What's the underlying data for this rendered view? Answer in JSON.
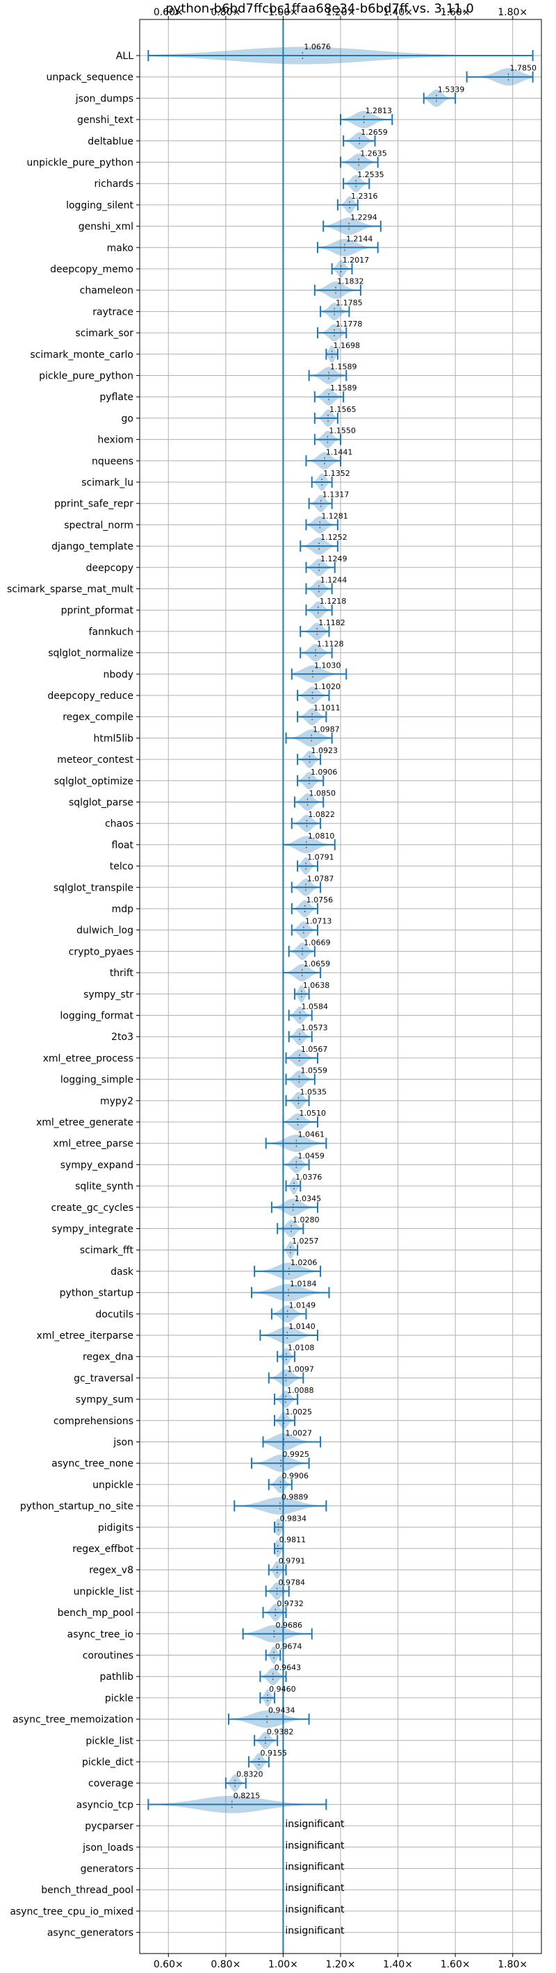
{
  "chart_data": {
    "type": "violin",
    "title": "python-b6bd7ffcbc1ffaa68e34-b6bd7ff vs. 3.11.0",
    "xlim": [
      0.5,
      1.9
    ],
    "xticks": [
      {
        "v": 0.6,
        "label": "0.60×"
      },
      {
        "v": 0.8,
        "label": "0.80×"
      },
      {
        "v": 1.0,
        "label": "1.00×"
      },
      {
        "v": 1.2,
        "label": "1.20×"
      },
      {
        "v": 1.4,
        "label": "1.40×"
      },
      {
        "v": 1.6,
        "label": "1.60×"
      },
      {
        "v": 1.8,
        "label": "1.80×"
      }
    ],
    "reference_line": 1.0,
    "grid": true,
    "insignificant_text": "insignificant",
    "benchmarks": [
      {
        "name": "ALL",
        "label": "1.0676",
        "value": 1.0676,
        "min": 0.53,
        "max": 1.87
      },
      {
        "name": "unpack_sequence",
        "label": "1.7850",
        "value": 1.785,
        "min": 1.64,
        "max": 1.87
      },
      {
        "name": "json_dumps",
        "label": "1.5339",
        "value": 1.5339,
        "min": 1.49,
        "max": 1.6
      },
      {
        "name": "genshi_text",
        "label": "1.2813",
        "value": 1.2813,
        "min": 1.2,
        "max": 1.38
      },
      {
        "name": "deltablue",
        "label": "1.2659",
        "value": 1.2659,
        "min": 1.21,
        "max": 1.32
      },
      {
        "name": "unpickle_pure_python",
        "label": "1.2635",
        "value": 1.2635,
        "min": 1.2,
        "max": 1.33
      },
      {
        "name": "richards",
        "label": "1.2535",
        "value": 1.2535,
        "min": 1.21,
        "max": 1.3
      },
      {
        "name": "logging_silent",
        "label": "1.2316",
        "value": 1.2316,
        "min": 1.19,
        "max": 1.26
      },
      {
        "name": "genshi_xml",
        "label": "1.2294",
        "value": 1.2294,
        "min": 1.14,
        "max": 1.34
      },
      {
        "name": "mako",
        "label": "1.2144",
        "value": 1.2144,
        "min": 1.12,
        "max": 1.33
      },
      {
        "name": "deepcopy_memo",
        "label": "1.2017",
        "value": 1.2017,
        "min": 1.17,
        "max": 1.24
      },
      {
        "name": "chameleon",
        "label": "1.1832",
        "value": 1.1832,
        "min": 1.11,
        "max": 1.27
      },
      {
        "name": "raytrace",
        "label": "1.1785",
        "value": 1.1785,
        "min": 1.13,
        "max": 1.23
      },
      {
        "name": "scimark_sor",
        "label": "1.1778",
        "value": 1.1778,
        "min": 1.12,
        "max": 1.22
      },
      {
        "name": "scimark_monte_carlo",
        "label": "1.1698",
        "value": 1.1698,
        "min": 1.15,
        "max": 1.19
      },
      {
        "name": "pickle_pure_python",
        "label": "1.1589",
        "value": 1.1589,
        "min": 1.09,
        "max": 1.22
      },
      {
        "name": "pyflate",
        "label": "1.1589",
        "value": 1.1589,
        "min": 1.11,
        "max": 1.21
      },
      {
        "name": "go",
        "label": "1.1565",
        "value": 1.1565,
        "min": 1.11,
        "max": 1.19
      },
      {
        "name": "hexiom",
        "label": "1.1550",
        "value": 1.155,
        "min": 1.11,
        "max": 1.2
      },
      {
        "name": "nqueens",
        "label": "1.1441",
        "value": 1.1441,
        "min": 1.08,
        "max": 1.2
      },
      {
        "name": "scimark_lu",
        "label": "1.1352",
        "value": 1.1352,
        "min": 1.1,
        "max": 1.17
      },
      {
        "name": "pprint_safe_repr",
        "label": "1.1317",
        "value": 1.1317,
        "min": 1.09,
        "max": 1.17
      },
      {
        "name": "spectral_norm",
        "label": "1.1281",
        "value": 1.1281,
        "min": 1.08,
        "max": 1.19
      },
      {
        "name": "django_template",
        "label": "1.1252",
        "value": 1.1252,
        "min": 1.06,
        "max": 1.19
      },
      {
        "name": "deepcopy",
        "label": "1.1249",
        "value": 1.1249,
        "min": 1.08,
        "max": 1.18
      },
      {
        "name": "scimark_sparse_mat_mult",
        "label": "1.1244",
        "value": 1.1244,
        "min": 1.08,
        "max": 1.17
      },
      {
        "name": "pprint_pformat",
        "label": "1.1218",
        "value": 1.1218,
        "min": 1.08,
        "max": 1.17
      },
      {
        "name": "fannkuch",
        "label": "1.1182",
        "value": 1.1182,
        "min": 1.06,
        "max": 1.16
      },
      {
        "name": "sqlglot_normalize",
        "label": "1.1128",
        "value": 1.1128,
        "min": 1.06,
        "max": 1.17
      },
      {
        "name": "nbody",
        "label": "1.1030",
        "value": 1.103,
        "min": 1.03,
        "max": 1.22
      },
      {
        "name": "deepcopy_reduce",
        "label": "1.1020",
        "value": 1.102,
        "min": 1.05,
        "max": 1.16
      },
      {
        "name": "regex_compile",
        "label": "1.1011",
        "value": 1.1011,
        "min": 1.05,
        "max": 1.15
      },
      {
        "name": "html5lib",
        "label": "1.0987",
        "value": 1.0987,
        "min": 1.01,
        "max": 1.17
      },
      {
        "name": "meteor_contest",
        "label": "1.0923",
        "value": 1.0923,
        "min": 1.05,
        "max": 1.13
      },
      {
        "name": "sqlglot_optimize",
        "label": "1.0906",
        "value": 1.0906,
        "min": 1.05,
        "max": 1.14
      },
      {
        "name": "sqlglot_parse",
        "label": "1.0850",
        "value": 1.085,
        "min": 1.04,
        "max": 1.14
      },
      {
        "name": "chaos",
        "label": "1.0822",
        "value": 1.0822,
        "min": 1.03,
        "max": 1.13
      },
      {
        "name": "float",
        "label": "1.0810",
        "value": 1.081,
        "min": 1.0,
        "max": 1.18
      },
      {
        "name": "telco",
        "label": "1.0791",
        "value": 1.0791,
        "min": 1.05,
        "max": 1.12
      },
      {
        "name": "sqlglot_transpile",
        "label": "1.0787",
        "value": 1.0787,
        "min": 1.03,
        "max": 1.13
      },
      {
        "name": "mdp",
        "label": "1.0756",
        "value": 1.0756,
        "min": 1.03,
        "max": 1.12
      },
      {
        "name": "dulwich_log",
        "label": "1.0713",
        "value": 1.0713,
        "min": 1.03,
        "max": 1.12
      },
      {
        "name": "crypto_pyaes",
        "label": "1.0669",
        "value": 1.0669,
        "min": 1.02,
        "max": 1.11
      },
      {
        "name": "thrift",
        "label": "1.0659",
        "value": 1.0659,
        "min": 1.0,
        "max": 1.13
      },
      {
        "name": "sympy_str",
        "label": "1.0638",
        "value": 1.0638,
        "min": 1.04,
        "max": 1.09
      },
      {
        "name": "logging_format",
        "label": "1.0584",
        "value": 1.0584,
        "min": 1.02,
        "max": 1.1
      },
      {
        "name": "2to3",
        "label": "1.0573",
        "value": 1.0573,
        "min": 1.02,
        "max": 1.1
      },
      {
        "name": "xml_etree_process",
        "label": "1.0567",
        "value": 1.0567,
        "min": 1.01,
        "max": 1.12
      },
      {
        "name": "logging_simple",
        "label": "1.0559",
        "value": 1.0559,
        "min": 1.01,
        "max": 1.11
      },
      {
        "name": "mypy2",
        "label": "1.0535",
        "value": 1.0535,
        "min": 1.01,
        "max": 1.09
      },
      {
        "name": "xml_etree_generate",
        "label": "1.0510",
        "value": 1.051,
        "min": 1.0,
        "max": 1.12
      },
      {
        "name": "xml_etree_parse",
        "label": "1.0461",
        "value": 1.0461,
        "min": 0.94,
        "max": 1.15
      },
      {
        "name": "sympy_expand",
        "label": "1.0459",
        "value": 1.0459,
        "min": 1.0,
        "max": 1.09
      },
      {
        "name": "sqlite_synth",
        "label": "1.0376",
        "value": 1.0376,
        "min": 1.01,
        "max": 1.06
      },
      {
        "name": "create_gc_cycles",
        "label": "1.0345",
        "value": 1.0345,
        "min": 0.96,
        "max": 1.12
      },
      {
        "name": "sympy_integrate",
        "label": "1.0280",
        "value": 1.028,
        "min": 0.98,
        "max": 1.07
      },
      {
        "name": "scimark_fft",
        "label": "1.0257",
        "value": 1.0257,
        "min": 1.0,
        "max": 1.05
      },
      {
        "name": "dask",
        "label": "1.0206",
        "value": 1.0206,
        "min": 0.9,
        "max": 1.13
      },
      {
        "name": "python_startup",
        "label": "1.0184",
        "value": 1.0184,
        "min": 0.89,
        "max": 1.16
      },
      {
        "name": "docutils",
        "label": "1.0149",
        "value": 1.0149,
        "min": 0.96,
        "max": 1.08
      },
      {
        "name": "xml_etree_iterparse",
        "label": "1.0140",
        "value": 1.014,
        "min": 0.92,
        "max": 1.12
      },
      {
        "name": "regex_dna",
        "label": "1.0108",
        "value": 1.0108,
        "min": 0.98,
        "max": 1.04
      },
      {
        "name": "gc_traversal",
        "label": "1.0097",
        "value": 1.0097,
        "min": 0.95,
        "max": 1.07
      },
      {
        "name": "sympy_sum",
        "label": "1.0088",
        "value": 1.0088,
        "min": 0.97,
        "max": 1.05
      },
      {
        "name": "comprehensions",
        "label": "1.0025",
        "value": 1.0025,
        "min": 0.97,
        "max": 1.04
      },
      {
        "name": "json",
        "label": "1.0027",
        "value": 1.0027,
        "min": 0.93,
        "max": 1.13
      },
      {
        "name": "async_tree_none",
        "label": "0.9925",
        "value": 0.9925,
        "min": 0.89,
        "max": 1.09
      },
      {
        "name": "unpickle",
        "label": "0.9906",
        "value": 0.9906,
        "min": 0.95,
        "max": 1.03
      },
      {
        "name": "python_startup_no_site",
        "label": "0.9889",
        "value": 0.9889,
        "min": 0.83,
        "max": 1.15
      },
      {
        "name": "pidigits",
        "label": "0.9834",
        "value": 0.9834,
        "min": 0.97,
        "max": 1.0
      },
      {
        "name": "regex_effbot",
        "label": "0.9811",
        "value": 0.9811,
        "min": 0.97,
        "max": 1.0
      },
      {
        "name": "regex_v8",
        "label": "0.9791",
        "value": 0.9791,
        "min": 0.95,
        "max": 1.01
      },
      {
        "name": "unpickle_list",
        "label": "0.9784",
        "value": 0.9784,
        "min": 0.94,
        "max": 1.02
      },
      {
        "name": "bench_mp_pool",
        "label": "0.9732",
        "value": 0.9732,
        "min": 0.93,
        "max": 1.01
      },
      {
        "name": "async_tree_io",
        "label": "0.9686",
        "value": 0.9686,
        "min": 0.86,
        "max": 1.1
      },
      {
        "name": "coroutines",
        "label": "0.9674",
        "value": 0.9674,
        "min": 0.94,
        "max": 0.99
      },
      {
        "name": "pathlib",
        "label": "0.9643",
        "value": 0.9643,
        "min": 0.92,
        "max": 1.01
      },
      {
        "name": "pickle",
        "label": "0.9460",
        "value": 0.946,
        "min": 0.92,
        "max": 0.97
      },
      {
        "name": "async_tree_memoization",
        "label": "0.9434",
        "value": 0.9434,
        "min": 0.81,
        "max": 1.09
      },
      {
        "name": "pickle_list",
        "label": "0.9382",
        "value": 0.9382,
        "min": 0.9,
        "max": 0.98
      },
      {
        "name": "pickle_dict",
        "label": "0.9155",
        "value": 0.9155,
        "min": 0.88,
        "max": 0.95
      },
      {
        "name": "coverage",
        "label": "0.8320",
        "value": 0.832,
        "min": 0.8,
        "max": 0.87
      },
      {
        "name": "asyncio_tcp",
        "label": "0.8215",
        "value": 0.8215,
        "min": 0.53,
        "max": 1.15
      },
      {
        "name": "pycparser",
        "insignificant": true
      },
      {
        "name": "json_loads",
        "insignificant": true
      },
      {
        "name": "generators",
        "insignificant": true
      },
      {
        "name": "bench_thread_pool",
        "insignificant": true
      },
      {
        "name": "async_tree_cpu_io_mixed",
        "insignificant": true
      },
      {
        "name": "async_generators",
        "insignificant": true
      }
    ]
  }
}
